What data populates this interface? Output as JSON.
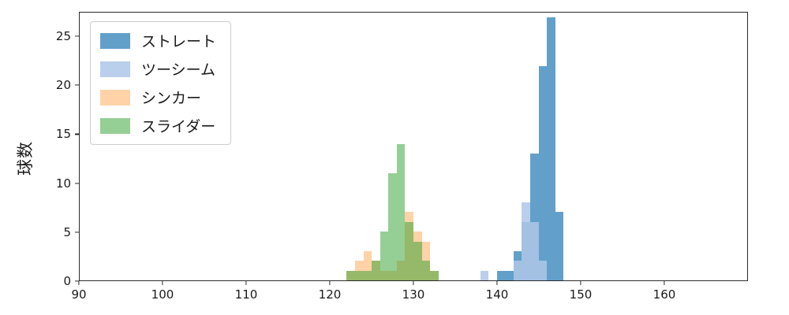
{
  "chart_data": {
    "type": "bar",
    "subtype": "histogram",
    "title": "",
    "xlabel": "",
    "ylabel": "球数",
    "xlim": [
      90,
      170
    ],
    "ylim": [
      0,
      27.5
    ],
    "xticks": [
      90,
      100,
      110,
      120,
      130,
      140,
      150,
      160
    ],
    "yticks": [
      0,
      5,
      10,
      15,
      20,
      25
    ],
    "bin_width": 1,
    "grid": false,
    "legend_position": "upper-left",
    "series": [
      {
        "name": "ストレート",
        "color": "rgba(31,119,180,0.7)",
        "bins": [
          [
            140,
            1
          ],
          [
            141,
            1
          ],
          [
            142,
            3
          ],
          [
            143,
            6
          ],
          [
            144,
            13
          ],
          [
            145,
            22
          ],
          [
            146,
            27
          ],
          [
            147,
            7
          ]
        ]
      },
      {
        "name": "ツーシーム",
        "color": "rgba(174,199,232,0.85)",
        "bins": [
          [
            138,
            1
          ],
          [
            142,
            2
          ],
          [
            143,
            8
          ],
          [
            144,
            6
          ],
          [
            145,
            2
          ]
        ]
      },
      {
        "name": "シンカー",
        "color": "rgba(255,187,120,0.65)",
        "bins": [
          [
            122,
            1
          ],
          [
            123,
            2
          ],
          [
            124,
            3
          ],
          [
            125,
            2
          ],
          [
            126,
            1
          ],
          [
            127,
            1
          ],
          [
            128,
            2
          ],
          [
            129,
            7
          ],
          [
            130,
            5
          ],
          [
            131,
            4
          ],
          [
            132,
            1
          ]
        ]
      },
      {
        "name": "スライダー",
        "color": "rgba(44,160,44,0.5)",
        "bins": [
          [
            122,
            1
          ],
          [
            123,
            1
          ],
          [
            124,
            1
          ],
          [
            125,
            2
          ],
          [
            126,
            5
          ],
          [
            127,
            11
          ],
          [
            128,
            14
          ],
          [
            129,
            6
          ],
          [
            130,
            4
          ],
          [
            131,
            2
          ],
          [
            132,
            1
          ]
        ]
      }
    ]
  }
}
